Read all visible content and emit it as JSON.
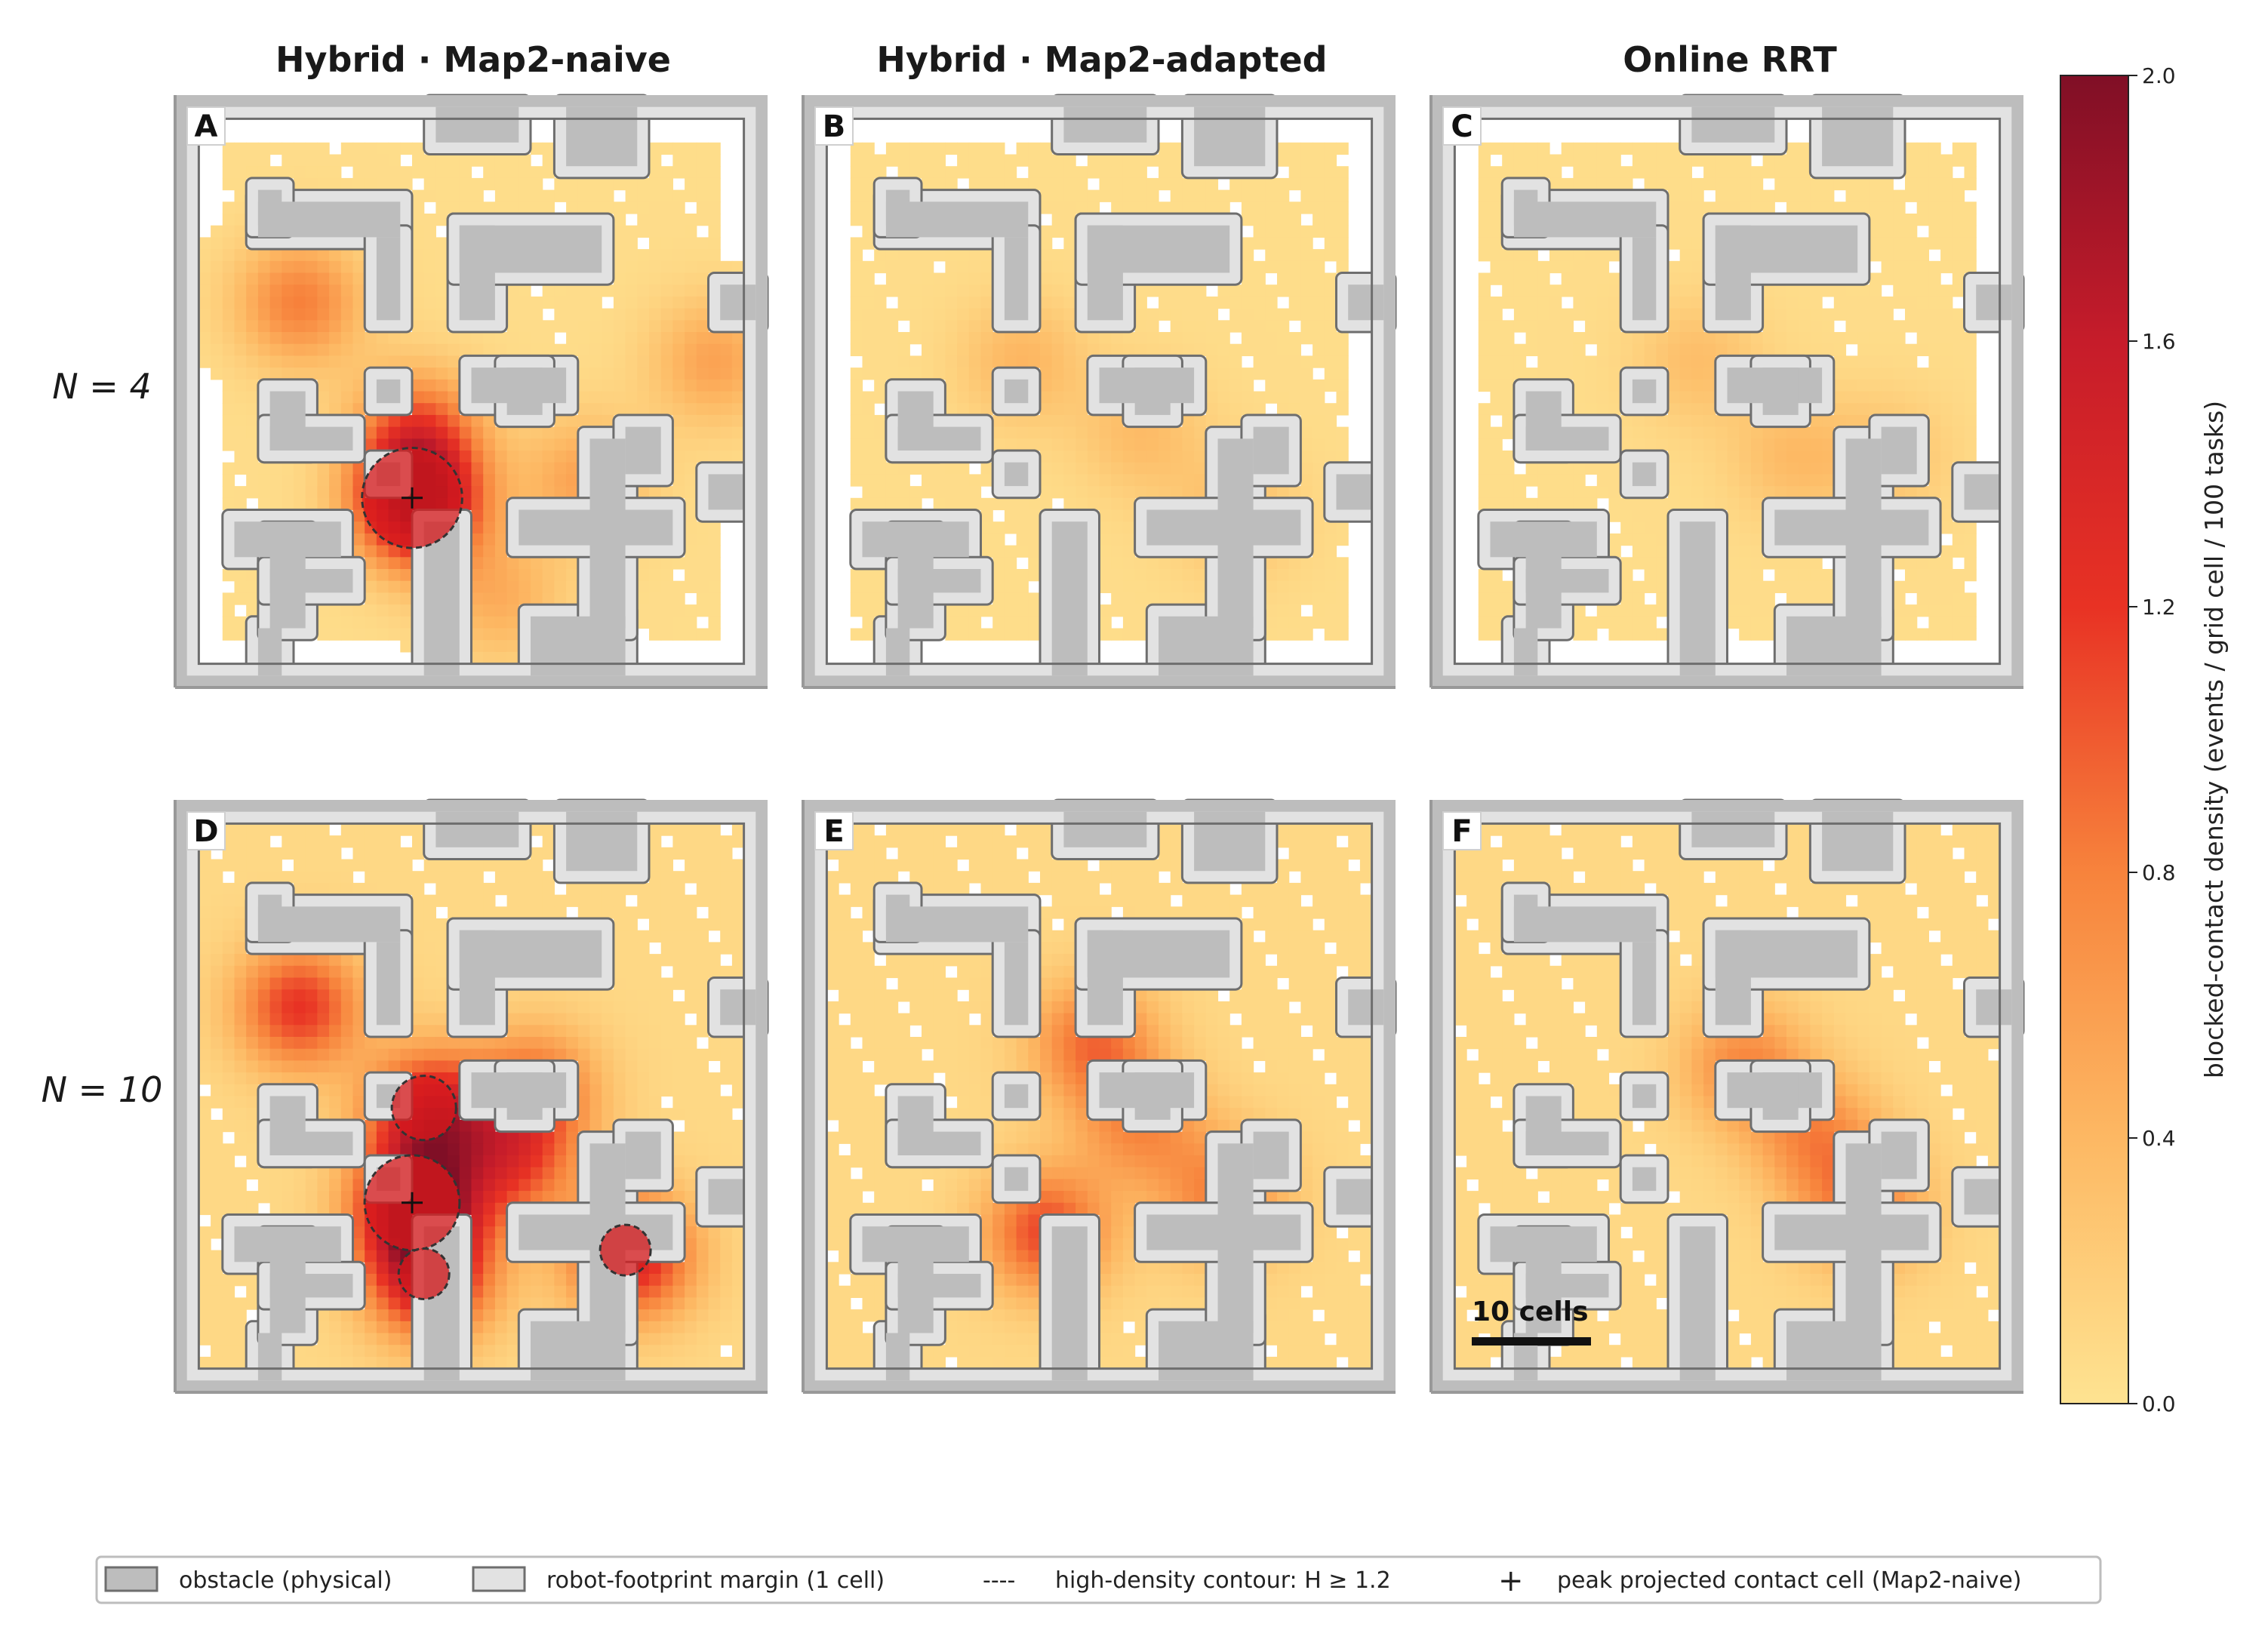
{
  "columns": [
    "Hybrid · Map2-naive",
    "Hybrid · Map2-adapted",
    "Online RRT"
  ],
  "rows": [
    "N = 4",
    "N = 10"
  ],
  "panels": [
    "A",
    "B",
    "C",
    "D",
    "E",
    "F"
  ],
  "colorbar": {
    "label": "blocked-contact density (events / grid cell / 100 tasks)",
    "ticks": [
      "0.0",
      "0.4",
      "0.8",
      "1.2",
      "1.6",
      "2.0"
    ],
    "min": 0.0,
    "max": 2.0,
    "colors": [
      "#fee391",
      "#fdb863",
      "#f7833c",
      "#e83224",
      "#c61c2a",
      "#800f26"
    ]
  },
  "scale_bar": {
    "label": "10 cells",
    "cells": 10
  },
  "legend": {
    "obstacle": "obstacle (physical)",
    "margin": "robot-footprint margin (1 cell)",
    "contour": "high-density contour: H ≥ 1.2",
    "peak": "peak projected contact cell (Map2-naive)",
    "contour_symbol": "----",
    "peak_symbol": "+"
  },
  "colors": {
    "obstacle": "#bdbdbd",
    "margin": "#e2e2e2",
    "outline": "#6e6e6e"
  },
  "chart_data": {
    "type": "heatmap",
    "grid_cells": 50,
    "contour_threshold": 1.2,
    "peak_cell": [
      20,
      34
    ],
    "panels": [
      {
        "id": "A",
        "method": "Hybrid · Map2-naive",
        "N": 4,
        "hotspots": [
          {
            "x": 20,
            "y": 34,
            "v": 1.9
          },
          {
            "x": 20,
            "y": 28,
            "v": 0.9
          },
          {
            "x": 10,
            "y": 17,
            "v": 0.75
          },
          {
            "x": 34,
            "y": 32,
            "v": 0.5
          },
          {
            "x": 27,
            "y": 42,
            "v": 0.4
          },
          {
            "x": 45,
            "y": 22,
            "v": 0.5
          }
        ]
      },
      {
        "id": "B",
        "method": "Hybrid · Map2-adapted",
        "N": 4,
        "hotspots": [
          {
            "x": 18,
            "y": 22,
            "v": 0.35
          },
          {
            "x": 28,
            "y": 28,
            "v": 0.3
          },
          {
            "x": 36,
            "y": 35,
            "v": 0.3
          }
        ]
      },
      {
        "id": "C",
        "method": "Online RRT",
        "N": 4,
        "hotspots": [
          {
            "x": 22,
            "y": 22,
            "v": 0.28
          },
          {
            "x": 30,
            "y": 30,
            "v": 0.3
          },
          {
            "x": 38,
            "y": 30,
            "v": 0.25
          }
        ]
      },
      {
        "id": "D",
        "method": "Hybrid · Map2-naive",
        "N": 10,
        "hotspots": [
          {
            "x": 20,
            "y": 34,
            "v": 1.8
          },
          {
            "x": 21,
            "y": 26,
            "v": 1.4
          },
          {
            "x": 21,
            "y": 40,
            "v": 1.3
          },
          {
            "x": 38,
            "y": 38,
            "v": 1.3
          },
          {
            "x": 10,
            "y": 17,
            "v": 1.1
          },
          {
            "x": 28,
            "y": 30,
            "v": 0.9
          },
          {
            "x": 30,
            "y": 24,
            "v": 0.8
          }
        ]
      },
      {
        "id": "E",
        "method": "Hybrid · Map2-adapted",
        "N": 10,
        "hotspots": [
          {
            "x": 20,
            "y": 36,
            "v": 1.0
          },
          {
            "x": 24,
            "y": 20,
            "v": 0.8
          },
          {
            "x": 35,
            "y": 33,
            "v": 0.7
          },
          {
            "x": 28,
            "y": 27,
            "v": 0.6
          }
        ]
      },
      {
        "id": "F",
        "method": "Online RRT",
        "N": 10,
        "hotspots": [
          {
            "x": 26,
            "y": 22,
            "v": 0.65
          },
          {
            "x": 36,
            "y": 34,
            "v": 0.7
          },
          {
            "x": 32,
            "y": 28,
            "v": 0.6
          }
        ]
      }
    ]
  }
}
